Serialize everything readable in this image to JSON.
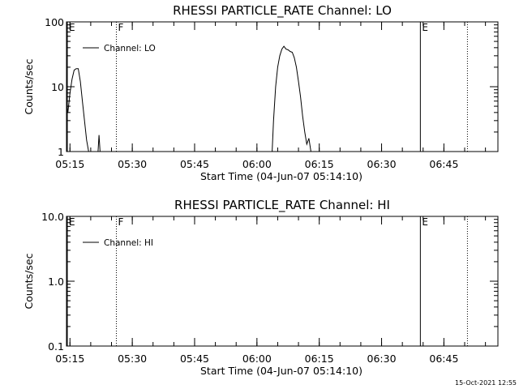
{
  "chart_data": [
    {
      "type": "line",
      "title": "RHESSI PARTICLE_RATE Channel: LO",
      "xlabel": "Start Time (04-Jun-07 05:14:10)",
      "ylabel": "Counts/sec",
      "y_scale": "log",
      "ylim": [
        1,
        100
      ],
      "yticks": [
        "1",
        "10",
        "100"
      ],
      "xlim": [
        "05:14:10",
        "06:58:00"
      ],
      "xticks": [
        "05:15",
        "05:30",
        "05:45",
        "06:00",
        "06:15",
        "06:30",
        "06:45"
      ],
      "legend": {
        "position": "top-left"
      },
      "series": [
        {
          "name": "Channel: LO",
          "x": [
            "05:14:30",
            "05:15:00",
            "05:15:30",
            "05:16:00",
            "05:16:30",
            "05:17:00",
            "05:17:30",
            "05:18:00",
            "05:18:30",
            "05:19:00",
            "05:19:30",
            "05:20:00",
            "05:20:15",
            null,
            "05:21:45",
            "05:22:00",
            "05:22:15",
            null,
            "06:03:40",
            "06:04:00",
            "06:04:30",
            "06:05:00",
            "06:05:30",
            "06:06:00",
            "06:06:30",
            "06:07:00",
            "06:07:30",
            "06:08:00",
            "06:08:30",
            "06:09:00",
            "06:09:30",
            "06:10:00",
            "06:10:30",
            "06:11:00",
            "06:11:30",
            "06:12:00",
            "06:12:30",
            "06:13:00",
            "06:13:30"
          ],
          "y": [
            4,
            8,
            13,
            18,
            19,
            19,
            12,
            6,
            3,
            1.5,
            1,
            1,
            1,
            null,
            1,
            1.8,
            1,
            null,
            1,
            3,
            10,
            20,
            30,
            38,
            42,
            38,
            37,
            35,
            34,
            28,
            20,
            12,
            7,
            3.5,
            2,
            1.3,
            1.6,
            1,
            1
          ]
        }
      ],
      "markers": [
        {
          "label": "E",
          "time": "05:14:10",
          "style": "solid"
        },
        {
          "label": "F",
          "time": "05:26:10",
          "style": "dotted"
        },
        {
          "label": "E",
          "time": "06:39:20",
          "style": "solid"
        },
        {
          "label": "",
          "time": "06:50:40",
          "style": "dotted"
        }
      ]
    },
    {
      "type": "line",
      "title": "RHESSI PARTICLE_RATE Channel: HI",
      "xlabel": "Start Time (04-Jun-07 05:14:10)",
      "ylabel": "Counts/sec",
      "y_scale": "log",
      "ylim": [
        0.1,
        10
      ],
      "yticks": [
        "0.1",
        "1.0",
        "10.0"
      ],
      "xlim": [
        "05:14:10",
        "06:58:00"
      ],
      "xticks": [
        "05:15",
        "05:30",
        "05:45",
        "06:00",
        "06:15",
        "06:30",
        "06:45"
      ],
      "legend": {
        "position": "top-left"
      },
      "series": [
        {
          "name": "Channel: HI",
          "x": [],
          "y": []
        }
      ],
      "markers": [
        {
          "label": "E",
          "time": "05:14:10",
          "style": "solid"
        },
        {
          "label": "F",
          "time": "05:26:10",
          "style": "dotted"
        },
        {
          "label": "E",
          "time": "06:39:20",
          "style": "solid"
        },
        {
          "label": "",
          "time": "06:50:40",
          "style": "dotted"
        }
      ]
    }
  ],
  "timestamp": "15-Oct-2021 12:55"
}
